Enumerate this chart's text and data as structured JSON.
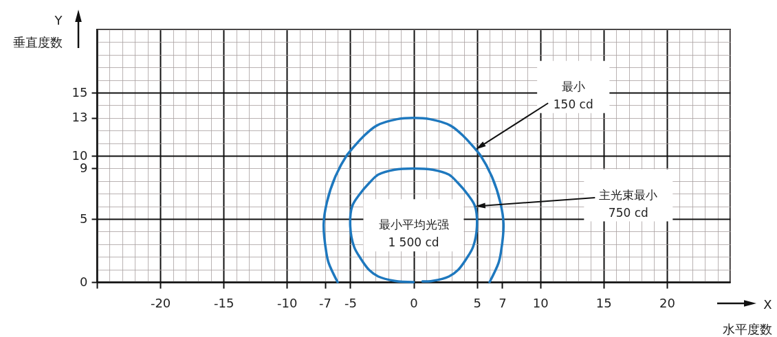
{
  "chart_data": {
    "type": "line",
    "xlabel": "X\n水平度数",
    "ylabel": "Y\n垂直度数",
    "series": [
      {
        "color": "#1e78be",
        "x": [
          -6,
          -6.7,
          -6.9,
          -7.1,
          -6.85,
          -6.2,
          -5.3,
          -4.9,
          -4.0,
          -2.9,
          -1.3,
          0,
          1.3,
          2.9,
          4.0,
          4.9,
          5.3,
          6.2,
          6.85,
          7.1,
          6.9,
          6.7,
          6
        ],
        "values": [
          0,
          1.5,
          2.4,
          4.6,
          6.3,
          8.3,
          10,
          10.5,
          11.5,
          12.4,
          12.9,
          13,
          12.9,
          12.4,
          11.5,
          10.5,
          10,
          8.3,
          6.3,
          4.6,
          2.4,
          1.5,
          0
        ]
      },
      {
        "color": "#1e78be",
        "x": [
          0,
          -1.5,
          -2.8,
          -3.5,
          -4.2,
          -4.7,
          -5,
          -4.85,
          -4.3,
          -3.5,
          -2.8,
          -1.5,
          0,
          1.5,
          2.8,
          3.5,
          4.3,
          4.85,
          5,
          4.7,
          4.2,
          3.5,
          2.8,
          1.5,
          0.7
        ],
        "values": [
          0,
          0.1,
          0.45,
          0.95,
          1.9,
          2.8,
          4.4,
          6,
          6.9,
          7.85,
          8.5,
          8.9,
          9,
          8.9,
          8.5,
          7.85,
          6.9,
          6,
          4.4,
          2.8,
          1.9,
          0.95,
          0.45,
          0.1,
          0.05
        ]
      }
    ],
    "xlim": [
      -25,
      25
    ],
    "ylim": [
      0,
      20
    ],
    "xticks": [
      {
        "value": -25,
        "label": null
      },
      -20,
      -15,
      -10,
      -7,
      -5,
      0,
      5,
      7,
      10,
      15,
      20
    ],
    "yticks": [
      0,
      5,
      9,
      10,
      13,
      15
    ],
    "grid": true,
    "annotations": [
      {
        "text": "最小\n150 cd",
        "x": 4.9,
        "y": 10.5
      },
      {
        "text": "主光束最小\n750 cd",
        "x": 4.85,
        "y": 6
      },
      "最小平均光强\n1 500 cd"
    ]
  }
}
